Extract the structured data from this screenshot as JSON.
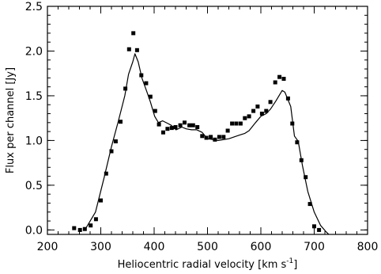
{
  "chart_data": {
    "type": "scatter",
    "title": "",
    "xlabel": "Heliocentric radial velocity [km s",
    "xlabel_sup": "-1",
    "xlabel_close": "]",
    "ylabel": "Flux per channel [Jy]",
    "xlim": [
      200,
      800
    ],
    "ylim": [
      -0.05,
      2.5
    ],
    "x_ticks": [
      200,
      300,
      400,
      500,
      600,
      700,
      800
    ],
    "x_tick_labels": [
      "200",
      "300",
      "400",
      "500",
      "600",
      "700",
      "800"
    ],
    "y_ticks": [
      0.0,
      0.5,
      1.0,
      1.5,
      2.0,
      2.5
    ],
    "y_tick_labels": [
      "0.0",
      "0.5",
      "1.0",
      "1.5",
      "2.0",
      "2.5"
    ],
    "x_minor_step": 20,
    "y_minor_step": 0.1,
    "grid": false,
    "legend": "none",
    "series": [
      {
        "style": "markers-square",
        "color": "#000000",
        "points": [
          [
            250,
            0.02
          ],
          [
            261,
            0.0
          ],
          [
            270,
            0.01
          ],
          [
            281,
            0.05
          ],
          [
            291,
            0.12
          ],
          [
            300,
            0.33
          ],
          [
            310,
            0.63
          ],
          [
            320,
            0.88
          ],
          [
            328,
            0.99
          ],
          [
            337,
            1.21
          ],
          [
            346,
            1.58
          ],
          [
            353,
            2.02
          ],
          [
            361,
            2.2
          ],
          [
            368,
            2.01
          ],
          [
            376,
            1.73
          ],
          [
            385,
            1.64
          ],
          [
            393,
            1.49
          ],
          [
            402,
            1.33
          ],
          [
            409,
            1.18
          ],
          [
            417,
            1.09
          ],
          [
            425,
            1.13
          ],
          [
            433,
            1.14
          ],
          [
            440,
            1.15
          ],
          [
            449,
            1.17
          ],
          [
            457,
            1.2
          ],
          [
            466,
            1.17
          ],
          [
            473,
            1.17
          ],
          [
            481,
            1.15
          ],
          [
            490,
            1.05
          ],
          [
            498,
            1.03
          ],
          [
            506,
            1.04
          ],
          [
            514,
            1.01
          ],
          [
            522,
            1.04
          ],
          [
            530,
            1.04
          ],
          [
            538,
            1.11
          ],
          [
            546,
            1.19
          ],
          [
            554,
            1.19
          ],
          [
            562,
            1.19
          ],
          [
            570,
            1.25
          ],
          [
            578,
            1.27
          ],
          [
            586,
            1.33
          ],
          [
            594,
            1.38
          ],
          [
            602,
            1.3
          ],
          [
            610,
            1.33
          ],
          [
            618,
            1.43
          ],
          [
            627,
            1.65
          ],
          [
            635,
            1.71
          ],
          [
            643,
            1.69
          ],
          [
            651,
            1.47
          ],
          [
            659,
            1.19
          ],
          [
            668,
            0.98
          ],
          [
            676,
            0.78
          ],
          [
            684,
            0.59
          ],
          [
            692,
            0.29
          ],
          [
            700,
            0.04
          ],
          [
            709,
            0.0
          ]
        ]
      },
      {
        "style": "line",
        "color": "#000000",
        "points": [
          [
            270,
            0.0
          ],
          [
            290,
            0.2
          ],
          [
            306,
            0.58
          ],
          [
            320,
            0.93
          ],
          [
            333,
            1.22
          ],
          [
            345,
            1.5
          ],
          [
            352,
            1.74
          ],
          [
            360,
            1.88
          ],
          [
            364,
            1.97
          ],
          [
            370,
            1.88
          ],
          [
            377,
            1.7
          ],
          [
            386,
            1.55
          ],
          [
            393,
            1.43
          ],
          [
            401,
            1.27
          ],
          [
            408,
            1.2
          ],
          [
            416,
            1.22
          ],
          [
            426,
            1.19
          ],
          [
            432,
            1.17
          ],
          [
            441,
            1.12
          ],
          [
            452,
            1.15
          ],
          [
            460,
            1.13
          ],
          [
            470,
            1.12
          ],
          [
            480,
            1.12
          ],
          [
            490,
            1.09
          ],
          [
            500,
            1.02
          ],
          [
            520,
            1.0
          ],
          [
            540,
            1.02
          ],
          [
            560,
            1.06
          ],
          [
            570,
            1.08
          ],
          [
            578,
            1.11
          ],
          [
            590,
            1.2
          ],
          [
            600,
            1.27
          ],
          [
            610,
            1.3
          ],
          [
            618,
            1.35
          ],
          [
            628,
            1.44
          ],
          [
            640,
            1.56
          ],
          [
            645,
            1.54
          ],
          [
            656,
            1.38
          ],
          [
            663,
            1.05
          ],
          [
            670,
            0.99
          ],
          [
            678,
            0.72
          ],
          [
            688,
            0.43
          ],
          [
            700,
            0.2
          ],
          [
            712,
            0.05
          ],
          [
            722,
            -0.02
          ],
          [
            729,
            -0.06
          ]
        ]
      }
    ]
  }
}
